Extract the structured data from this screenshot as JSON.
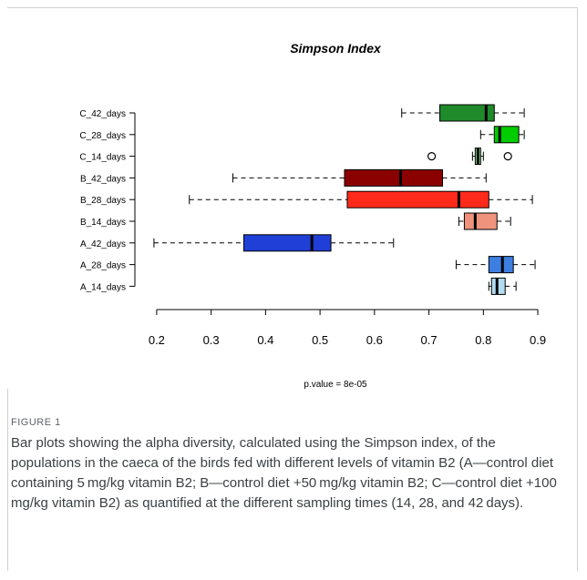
{
  "chart_data": {
    "type": "boxplot",
    "orientation": "horizontal",
    "title": "Simpson Index",
    "xlim": [
      0.16,
      0.92
    ],
    "xticks": [
      0.2,
      0.3,
      0.4,
      0.5,
      0.6,
      0.7,
      0.8,
      0.9
    ],
    "footnote": "p.value = 8e-05",
    "grid": false,
    "categories": [
      "C_42_days",
      "C_28_days",
      "C_14_days",
      "B_42_days",
      "B_28_days",
      "B_14_days",
      "A_42_days",
      "A_28_days",
      "A_14_days"
    ],
    "boxes": [
      {
        "label": "C_42_days",
        "whisker_low": 0.65,
        "q1": 0.72,
        "median": 0.805,
        "q3": 0.82,
        "whisker_high": 0.875,
        "outliers": [],
        "color": "#1f8a2a"
      },
      {
        "label": "C_28_days",
        "whisker_low": 0.795,
        "q1": 0.82,
        "median": 0.83,
        "q3": 0.865,
        "whisker_high": 0.875,
        "outliers": [],
        "color": "#00cc00"
      },
      {
        "label": "C_14_days",
        "whisker_low": 0.78,
        "q1": 0.785,
        "median": 0.79,
        "q3": 0.795,
        "whisker_high": 0.8,
        "outliers": [
          0.705,
          0.845
        ],
        "color": "#7fe07f"
      },
      {
        "label": "B_42_days",
        "whisker_low": 0.34,
        "q1": 0.545,
        "median": 0.648,
        "q3": 0.725,
        "whisker_high": 0.805,
        "outliers": [],
        "color": "#8b0000"
      },
      {
        "label": "B_28_days",
        "whisker_low": 0.26,
        "q1": 0.55,
        "median": 0.755,
        "q3": 0.81,
        "whisker_high": 0.89,
        "outliers": [],
        "color": "#ff2a1a"
      },
      {
        "label": "B_14_days",
        "whisker_low": 0.755,
        "q1": 0.765,
        "median": 0.785,
        "q3": 0.825,
        "whisker_high": 0.85,
        "outliers": [],
        "color": "#f0937c"
      },
      {
        "label": "A_42_days",
        "whisker_low": 0.195,
        "q1": 0.36,
        "median": 0.485,
        "q3": 0.52,
        "whisker_high": 0.635,
        "outliers": [],
        "color": "#1f3fd6"
      },
      {
        "label": "A_28_days",
        "whisker_low": 0.75,
        "q1": 0.81,
        "median": 0.835,
        "q3": 0.855,
        "whisker_high": 0.895,
        "outliers": [],
        "color": "#3d7fe0"
      },
      {
        "label": "A_14_days",
        "whisker_low": 0.81,
        "q1": 0.815,
        "median": 0.825,
        "q3": 0.84,
        "whisker_high": 0.86,
        "outliers": [],
        "color": "#b3dcf2"
      }
    ]
  },
  "figure": {
    "label": "FIGURE 1",
    "caption": "Bar plots showing the alpha diversity, calculated using the Simpson index, of the populations in the caeca of the birds fed with different levels of vitamin B2 (A—control diet containing 5 mg/kg vitamin B2; B—control diet +50 mg/kg vitamin B2; C—control diet +100 mg/kg vitamin B2) as quantified at the different sampling times (14, 28, and 42 days)."
  }
}
